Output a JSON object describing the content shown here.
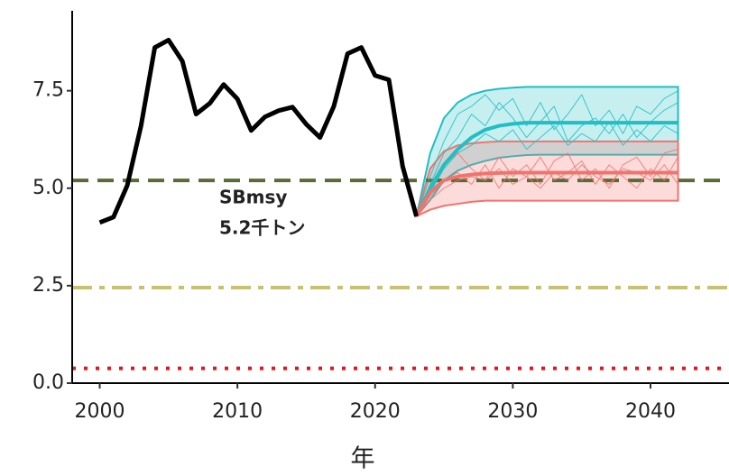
{
  "chart_data": {
    "type": "line",
    "xlabel": "年",
    "xlim": [
      1998,
      2045.7
    ],
    "ylim": [
      0,
      9.55
    ],
    "xticks": [
      2000,
      2010,
      2020,
      2030,
      2040
    ],
    "yticks": [
      {
        "value": 0,
        "label": "0.0"
      },
      {
        "value": 2.5,
        "label": "2.5"
      },
      {
        "value": 5,
        "label": "5.0"
      },
      {
        "value": 7.5,
        "label": "7.5"
      }
    ],
    "hlines": [
      {
        "value": 5.2,
        "color": "#5a6b35",
        "style": "dashed"
      },
      {
        "value": 2.45,
        "color": "#c9c071",
        "style": "dashdot"
      },
      {
        "value": 0.38,
        "color": "#e8141c",
        "style": "dotted"
      }
    ],
    "annotations": [
      "SBmsy",
      "5.2千トン"
    ],
    "bands": [
      {
        "color": "#1fbfc4",
        "x": [
          2023,
          2024,
          2025,
          2026,
          2027,
          2028,
          2029,
          2030,
          2031,
          2032,
          2033,
          2034,
          2035,
          2036,
          2037,
          2038,
          2039,
          2040,
          2041,
          2042
        ],
        "upper": [
          4.28,
          5.9,
          6.8,
          7.2,
          7.4,
          7.5,
          7.55,
          7.58,
          7.6,
          7.6,
          7.6,
          7.6,
          7.6,
          7.6,
          7.6,
          7.6,
          7.6,
          7.6,
          7.6,
          7.6
        ],
        "lower": [
          4.28,
          4.7,
          5.2,
          5.45,
          5.6,
          5.7,
          5.78,
          5.82,
          5.85,
          5.86,
          5.86,
          5.86,
          5.86,
          5.86,
          5.86,
          5.86,
          5.86,
          5.86,
          5.86,
          5.86
        ]
      },
      {
        "color": "#f0746e",
        "x": [
          2023,
          2024,
          2025,
          2026,
          2027,
          2028,
          2029,
          2030,
          2031,
          2032,
          2033,
          2034,
          2035,
          2036,
          2037,
          2038,
          2039,
          2040,
          2041,
          2042
        ],
        "upper": [
          4.28,
          5.5,
          5.95,
          6.1,
          6.15,
          6.18,
          6.2,
          6.2,
          6.2,
          6.2,
          6.2,
          6.2,
          6.2,
          6.2,
          6.2,
          6.2,
          6.2,
          6.2,
          6.2,
          6.2
        ],
        "lower": [
          4.28,
          4.45,
          4.55,
          4.6,
          4.65,
          4.68,
          4.68,
          4.68,
          4.68,
          4.68,
          4.68,
          4.68,
          4.68,
          4.68,
          4.68,
          4.68,
          4.68,
          4.68,
          4.68,
          4.68
        ]
      }
    ],
    "series": [
      {
        "color": "#1fbfc4",
        "width": 1,
        "x": [
          2023,
          2024,
          2025,
          2026,
          2027,
          2028,
          2029,
          2030,
          2031,
          2032,
          2033,
          2034,
          2035,
          2036,
          2037,
          2038,
          2039,
          2040,
          2041,
          2042
        ],
        "values": [
          4.28,
          5.3,
          6.2,
          6.9,
          7.1,
          7.4,
          7.0,
          7.3,
          6.6,
          7.2,
          6.5,
          6.9,
          7.4,
          6.6,
          7.0,
          6.4,
          7.1,
          6.9,
          7.3,
          7.5
        ]
      },
      {
        "color": "#1fbfc4",
        "width": 1,
        "x": [
          2023,
          2024,
          2025,
          2026,
          2027,
          2028,
          2029,
          2030,
          2031,
          2032,
          2033,
          2034,
          2035,
          2036,
          2037,
          2038,
          2039,
          2040,
          2041,
          2042
        ],
        "values": [
          4.28,
          5.1,
          5.9,
          6.3,
          6.9,
          6.6,
          7.2,
          6.8,
          6.3,
          6.7,
          7.1,
          6.2,
          6.6,
          6.8,
          6.4,
          6.9,
          6.3,
          6.7,
          7.0,
          7.2
        ]
      },
      {
        "color": "#1fbfc4",
        "width": 1,
        "x": [
          2023,
          2024,
          2025,
          2026,
          2027,
          2028,
          2029,
          2030,
          2031,
          2032,
          2033,
          2034,
          2035,
          2036,
          2037,
          2038,
          2039,
          2040,
          2041,
          2042
        ],
        "values": [
          4.28,
          4.9,
          5.5,
          5.9,
          6.1,
          6.4,
          6.2,
          6.5,
          6.0,
          6.3,
          6.6,
          6.1,
          6.4,
          6.2,
          6.7,
          6.1,
          6.5,
          6.2,
          6.6,
          6.4
        ]
      },
      {
        "color": "#f0746e",
        "width": 1,
        "x": [
          2023,
          2024,
          2025,
          2026,
          2027,
          2028,
          2029,
          2030,
          2031,
          2032,
          2033,
          2034,
          2035,
          2036,
          2037,
          2038,
          2039,
          2040,
          2041,
          2042
        ],
        "values": [
          4.28,
          5.1,
          5.6,
          5.9,
          5.5,
          5.2,
          5.8,
          5.3,
          5.6,
          5.1,
          5.7,
          5.9,
          5.2,
          5.5,
          5.0,
          5.6,
          5.8,
          5.3,
          5.9,
          6.0
        ]
      },
      {
        "color": "#f0746e",
        "width": 1,
        "x": [
          2023,
          2024,
          2025,
          2026,
          2027,
          2028,
          2029,
          2030,
          2031,
          2032,
          2033,
          2034,
          2035,
          2036,
          2037,
          2038,
          2039,
          2040,
          2041,
          2042
        ],
        "values": [
          4.28,
          4.8,
          5.2,
          5.4,
          5.1,
          5.6,
          5.0,
          5.5,
          5.3,
          5.8,
          5.2,
          5.4,
          5.7,
          5.1,
          5.6,
          5.3,
          5.0,
          5.5,
          5.2,
          5.8
        ]
      },
      {
        "color": "#f0746e",
        "width": 1,
        "x": [
          2023,
          2024,
          2025,
          2026,
          2027,
          2028,
          2029,
          2030,
          2031,
          2032,
          2033,
          2034,
          2035,
          2036,
          2037,
          2038,
          2039,
          2040,
          2041,
          2042
        ],
        "values": [
          4.28,
          4.7,
          5.0,
          5.2,
          5.3,
          5.2,
          5.5,
          5.1,
          5.3,
          5.0,
          5.4,
          5.2,
          5.6,
          5.3,
          5.1,
          5.5,
          5.4,
          5.2,
          5.6,
          5.1
        ]
      },
      {
        "color": "#1fbfc4",
        "width": 4,
        "x": [
          2023,
          2024,
          2025,
          2026,
          2027,
          2028,
          2029,
          2030,
          2031,
          2032,
          2033,
          2034,
          2035,
          2036,
          2037,
          2038,
          2039,
          2040,
          2041,
          2042
        ],
        "values": [
          4.28,
          5.0,
          5.6,
          6.0,
          6.3,
          6.5,
          6.6,
          6.65,
          6.68,
          6.68,
          6.68,
          6.68,
          6.68,
          6.68,
          6.68,
          6.68,
          6.68,
          6.68,
          6.68,
          6.68
        ]
      },
      {
        "color": "#f0746e",
        "width": 4,
        "x": [
          2023,
          2024,
          2025,
          2026,
          2027,
          2028,
          2029,
          2030,
          2031,
          2032,
          2033,
          2034,
          2035,
          2036,
          2037,
          2038,
          2039,
          2040,
          2041,
          2042
        ],
        "values": [
          4.28,
          4.9,
          5.2,
          5.3,
          5.35,
          5.38,
          5.39,
          5.4,
          5.4,
          5.4,
          5.4,
          5.4,
          5.4,
          5.4,
          5.4,
          5.4,
          5.4,
          5.4,
          5.4,
          5.4
        ]
      },
      {
        "color": "#000000",
        "width": 5,
        "x": [
          2000,
          2001,
          2002,
          2003,
          2004,
          2005,
          2006,
          2007,
          2008,
          2009,
          2010,
          2011,
          2012,
          2013,
          2014,
          2015,
          2016,
          2017,
          2018,
          2019,
          2020,
          2021,
          2022,
          2023
        ],
        "values": [
          4.12,
          4.26,
          5.07,
          6.6,
          8.61,
          8.8,
          8.26,
          6.9,
          7.18,
          7.66,
          7.29,
          6.48,
          6.83,
          6.99,
          7.08,
          6.64,
          6.3,
          7.1,
          8.45,
          8.61,
          7.89,
          7.78,
          5.56,
          4.28
        ]
      }
    ]
  }
}
